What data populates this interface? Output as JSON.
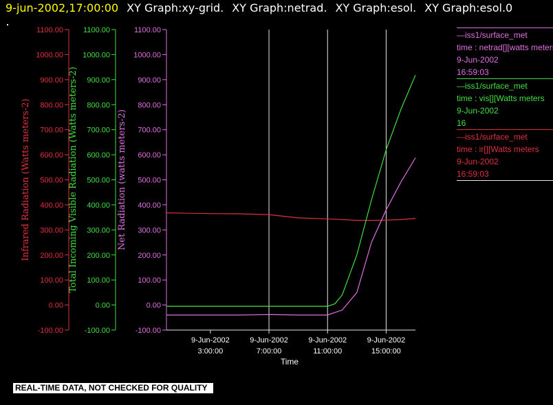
{
  "header": {
    "date_time": "9-jun-2002,17:00:00",
    "graphs": [
      "XY Graph:xy-grid.",
      "XY Graph:netrad.",
      "XY Graph:esol.",
      "XY Graph:esol.0"
    ]
  },
  "disclaimer": "REAL-TIME DATA, NOT CHECKED FOR QUALITY",
  "legend": [
    {
      "source": "—iss1/surface_met",
      "variable": "time : netrad[][watts meters",
      "date": "9-Jun-2002",
      "time": "16:59:03",
      "color": "#e070e0"
    },
    {
      "source": "—iss1/surface_met",
      "variable": "time : vis[][Watts meters",
      "date": "9-Jun-2002",
      "time": "16",
      "color": "#40e040"
    },
    {
      "source": "—iss1/surface_met",
      "variable": "time : ir[][Watts meters",
      "date": "9-Jun-2002",
      "time": "16:59:03",
      "color": "#e03040"
    }
  ],
  "chart_data": {
    "type": "line",
    "xlabel": "Time",
    "x_ticks": [
      {
        "date": "9-Jun-2002",
        "time": "3:00:00"
      },
      {
        "date": "9-Jun-2002",
        "time": "7:00:00"
      },
      {
        "date": "9-Jun-2002",
        "time": "11:00:00"
      },
      {
        "date": "9-Jun-2002",
        "time": "15:00:00"
      }
    ],
    "xlim_hours": [
      0,
      17
    ],
    "gridlines_x_hours": [
      7,
      11,
      15
    ],
    "ylim": [
      -100,
      1100
    ],
    "y_ticks": [
      "1100.00",
      "1000.00",
      "900.00",
      "800.00",
      "700.00",
      "600.00",
      "500.00",
      "400.00",
      "300.00",
      "200.00",
      "100.00",
      "0.00",
      "-100.00"
    ],
    "y_tick_values": [
      1100,
      1000,
      900,
      800,
      700,
      600,
      500,
      400,
      300,
      200,
      100,
      0,
      -100
    ],
    "axes": [
      {
        "label": "Infrared Radiation (Watts meters-2)",
        "color": "#e03040"
      },
      {
        "label": "Total Incoming Visible Radiation (Watts meters-2)",
        "color": "#40e040"
      },
      {
        "label": "Net Radiation (watts meters-2)",
        "color": "#e070e0"
      }
    ],
    "series": [
      {
        "color": "#e03040",
        "x": [
          "2002-06-09 00:00",
          "2002-06-09 03:00",
          "2002-06-09 05:00",
          "2002-06-09 07:00",
          "2002-06-09 09:00",
          "2002-06-09 11:00",
          "2002-06-09 13:00",
          "2002-06-09 14:00",
          "2002-06-09 15:00",
          "2002-06-09 16:00",
          "2002-06-09 17:00"
        ],
        "y": [
          368,
          365,
          364,
          361,
          348,
          344,
          338,
          338,
          339,
          341,
          346
        ]
      },
      {
        "color": "#40e040",
        "x": [
          "2002-06-09 00:00",
          "2002-06-09 05:00",
          "2002-06-09 09:00",
          "2002-06-09 11:00",
          "2002-06-09 11:30",
          "2002-06-09 12:00",
          "2002-06-09 13:00",
          "2002-06-09 14:00",
          "2002-06-09 15:00",
          "2002-06-09 16:00",
          "2002-06-09 17:00"
        ],
        "y": [
          -5,
          -5,
          -5,
          -5,
          5,
          40,
          200,
          420,
          620,
          780,
          918
        ]
      },
      {
        "color": "#e070e0",
        "x": [
          "2002-06-09 00:00",
          "2002-06-09 05:00",
          "2002-06-09 07:00",
          "2002-06-09 09:00",
          "2002-06-09 11:00",
          "2002-06-09 12:00",
          "2002-06-09 13:00",
          "2002-06-09 14:00",
          "2002-06-09 15:00",
          "2002-06-09 16:00",
          "2002-06-09 17:00"
        ],
        "y": [
          -40,
          -40,
          -38,
          -40,
          -40,
          -20,
          50,
          250,
          380,
          490,
          588
        ]
      }
    ]
  }
}
